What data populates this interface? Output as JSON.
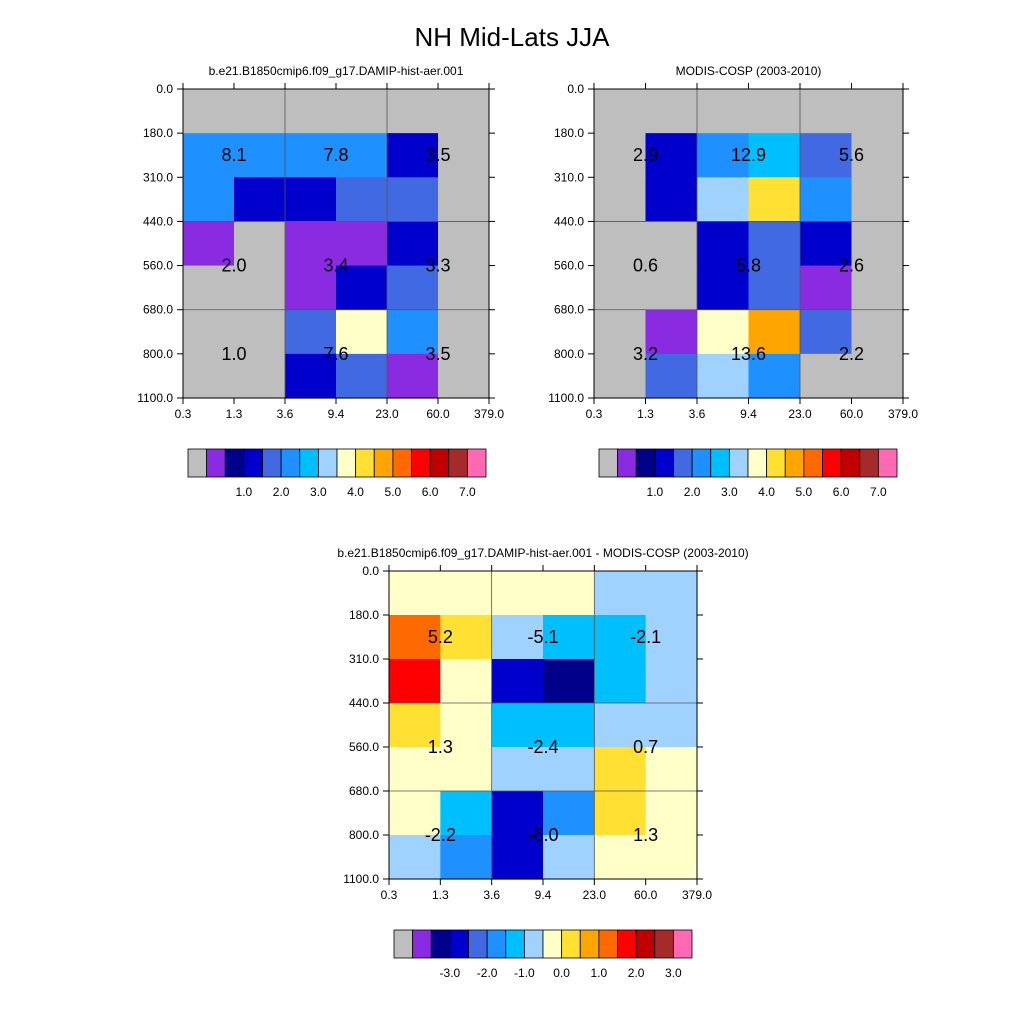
{
  "title": "NH Mid-Lats JJA",
  "chart_data": [
    {
      "type": "heatmap",
      "title": "b.e21.B1850cmip6.f09_g17.DAMIP-hist-aer.001",
      "x_tick_labels": [
        "0.3",
        "1.3",
        "3.6",
        "9.4",
        "23.0",
        "60.0",
        "379.0"
      ],
      "y_tick_labels": [
        "0.0",
        "180.0",
        "310.0",
        "440.0",
        "560.0",
        "680.0",
        "800.0",
        "1100.0"
      ],
      "missing_color": "#bebebe",
      "grid": [
        [
          -1,
          -1,
          -1,
          -1,
          -1,
          -1
        ],
        [
          5,
          5,
          5,
          5,
          3,
          -1
        ],
        [
          5,
          3,
          3,
          4,
          4,
          -1
        ],
        [
          1,
          -1,
          1,
          1,
          3,
          -1
        ],
        [
          -1,
          -1,
          1,
          3,
          4,
          -1
        ],
        [
          -1,
          -1,
          4,
          8,
          5,
          -1
        ],
        [
          -1,
          -1,
          3,
          4,
          1,
          -1
        ]
      ],
      "block_labels": [
        {
          "text": "8.1",
          "col": 1,
          "row": 1.5
        },
        {
          "text": "7.8",
          "col": 3,
          "row": 1.5
        },
        {
          "text": "3.5",
          "col": 5,
          "row": 1.5
        },
        {
          "text": "2.0",
          "col": 1,
          "row": 4
        },
        {
          "text": "3.4",
          "col": 3,
          "row": 4
        },
        {
          "text": "3.3",
          "col": 5,
          "row": 4
        },
        {
          "text": "1.0",
          "col": 1,
          "row": 6
        },
        {
          "text": "7.6",
          "col": 3,
          "row": 6
        },
        {
          "text": "3.5",
          "col": 5,
          "row": 6
        }
      ],
      "colorbar": {
        "colors": [
          "#bebebe",
          "#8a2be2",
          "#00008b",
          "#0000cd",
          "#4169e1",
          "#1e90ff",
          "#00bfff",
          "#a0d2ff",
          "#ffffc8",
          "#ffe033",
          "#ffa500",
          "#ff6a00",
          "#ff0000",
          "#c00000",
          "#a52a2a",
          "#ff69b4"
        ],
        "labels": [
          "1.0",
          "2.0",
          "3.0",
          "4.0",
          "5.0",
          "6.0",
          "7.0"
        ]
      }
    },
    {
      "type": "heatmap",
      "title": "MODIS-COSP (2003-2010)",
      "x_tick_labels": [
        "0.3",
        "1.3",
        "3.6",
        "9.4",
        "23.0",
        "60.0",
        "379.0"
      ],
      "y_tick_labels": [
        "0.0",
        "180.0",
        "310.0",
        "440.0",
        "560.0",
        "680.0",
        "800.0",
        "1100.0"
      ],
      "missing_color": "#bebebe",
      "grid": [
        [
          -1,
          -1,
          -1,
          -1,
          -1,
          -1
        ],
        [
          -1,
          3,
          5,
          6,
          4,
          -1
        ],
        [
          -1,
          3,
          7,
          9,
          5,
          -1
        ],
        [
          -1,
          -1,
          3,
          4,
          3,
          -1
        ],
        [
          -1,
          -1,
          3,
          4,
          1,
          -1
        ],
        [
          -1,
          1,
          8,
          10,
          4,
          -1
        ],
        [
          -1,
          4,
          7,
          5,
          -1,
          -1
        ]
      ],
      "block_labels": [
        {
          "text": "2.9",
          "col": 1,
          "row": 1.5
        },
        {
          "text": "12.9",
          "col": 3,
          "row": 1.5
        },
        {
          "text": "5.6",
          "col": 5,
          "row": 1.5
        },
        {
          "text": "0.6",
          "col": 1,
          "row": 4
        },
        {
          "text": "5.8",
          "col": 3,
          "row": 4
        },
        {
          "text": "2.6",
          "col": 5,
          "row": 4
        },
        {
          "text": "3.2",
          "col": 1,
          "row": 6
        },
        {
          "text": "13.6",
          "col": 3,
          "row": 6
        },
        {
          "text": "2.2",
          "col": 5,
          "row": 6
        }
      ],
      "colorbar": {
        "colors": [
          "#bebebe",
          "#8a2be2",
          "#00008b",
          "#0000cd",
          "#4169e1",
          "#1e90ff",
          "#00bfff",
          "#a0d2ff",
          "#ffffc8",
          "#ffe033",
          "#ffa500",
          "#ff6a00",
          "#ff0000",
          "#c00000",
          "#a52a2a",
          "#ff69b4"
        ],
        "labels": [
          "1.0",
          "2.0",
          "3.0",
          "4.0",
          "5.0",
          "6.0",
          "7.0"
        ]
      }
    },
    {
      "type": "heatmap",
      "title": "b.e21.B1850cmip6.f09_g17.DAMIP-hist-aer.001 - MODIS-COSP (2003-2010)",
      "x_tick_labels": [
        "0.3",
        "1.3",
        "3.6",
        "9.4",
        "23.0",
        "60.0",
        "379.0"
      ],
      "y_tick_labels": [
        "0.0",
        "180.0",
        "310.0",
        "440.0",
        "560.0",
        "680.0",
        "800.0",
        "1100.0"
      ],
      "missing_color": "#bebebe",
      "grid": [
        [
          8,
          8,
          8,
          8,
          7,
          7
        ],
        [
          11,
          9,
          7,
          6,
          6,
          7
        ],
        [
          12,
          8,
          3,
          2,
          6,
          7
        ],
        [
          9,
          8,
          6,
          6,
          7,
          7
        ],
        [
          8,
          8,
          7,
          7,
          9,
          8
        ],
        [
          8,
          6,
          3,
          5,
          9,
          8
        ],
        [
          7,
          5,
          3,
          7,
          8,
          8
        ]
      ],
      "block_labels": [
        {
          "text": "5.2",
          "col": 1,
          "row": 1.5
        },
        {
          "text": "-5.1",
          "col": 3,
          "row": 1.5
        },
        {
          "text": "-2.1",
          "col": 5,
          "row": 1.5
        },
        {
          "text": "1.3",
          "col": 1,
          "row": 4
        },
        {
          "text": "-2.4",
          "col": 3,
          "row": 4
        },
        {
          "text": "0.7",
          "col": 5,
          "row": 4
        },
        {
          "text": "-2.2",
          "col": 1,
          "row": 6
        },
        {
          "text": "-6.0",
          "col": 3,
          "row": 6
        },
        {
          "text": "1.3",
          "col": 5,
          "row": 6
        }
      ],
      "colorbar": {
        "colors": [
          "#bebebe",
          "#8a2be2",
          "#00008b",
          "#0000cd",
          "#4169e1",
          "#1e90ff",
          "#00bfff",
          "#a0d2ff",
          "#ffffc8",
          "#ffe033",
          "#ffa500",
          "#ff6a00",
          "#ff0000",
          "#c00000",
          "#a52a2a",
          "#ff69b4"
        ],
        "labels": [
          "-3.0",
          "-2.0",
          "-1.0",
          "0.0",
          "1.0",
          "2.0",
          "3.0"
        ]
      }
    }
  ]
}
